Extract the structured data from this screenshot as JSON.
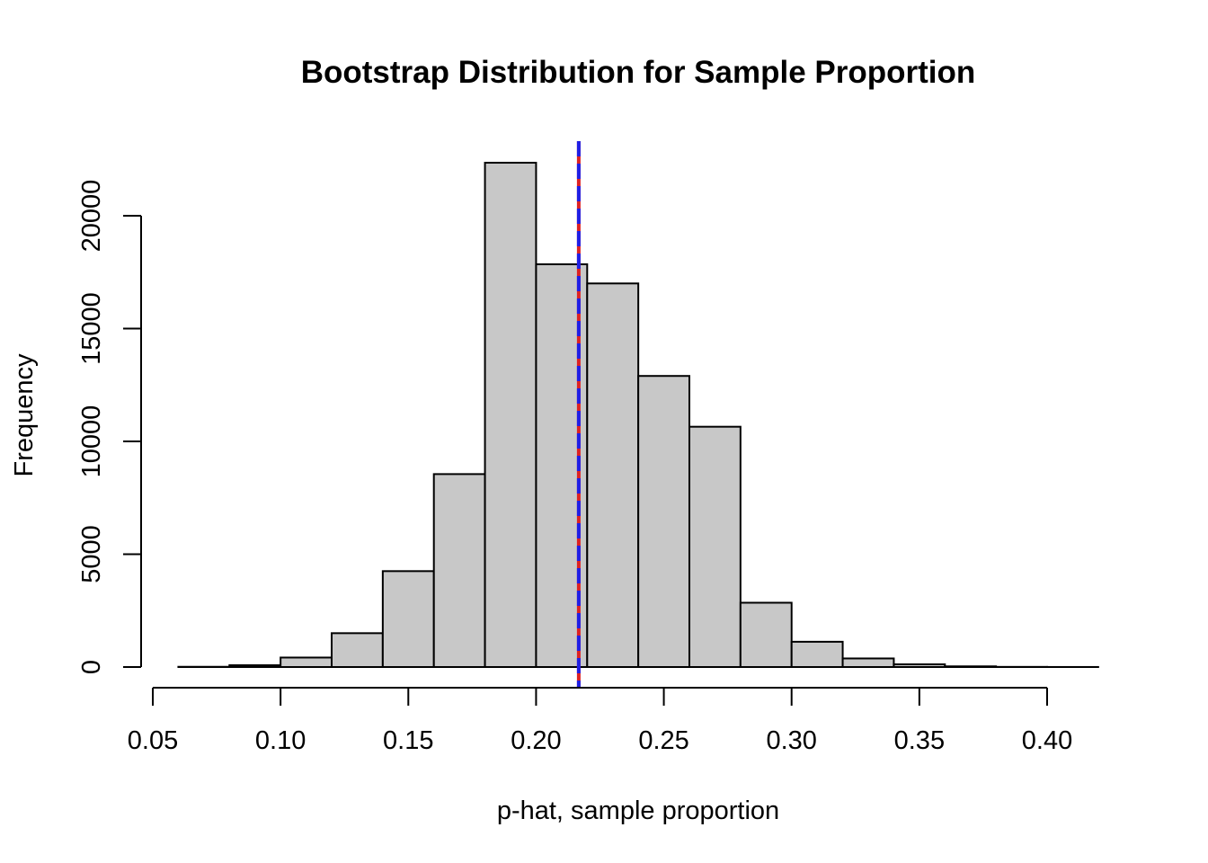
{
  "chart_data": {
    "type": "bar",
    "title": "Bootstrap Distribution for Sample Proportion",
    "xlabel": "p-hat, sample proportion",
    "ylabel": "Frequency",
    "bins": [
      {
        "start": 0.06,
        "end": 0.08,
        "count": 10
      },
      {
        "start": 0.08,
        "end": 0.1,
        "count": 80
      },
      {
        "start": 0.1,
        "end": 0.12,
        "count": 420
      },
      {
        "start": 0.12,
        "end": 0.14,
        "count": 1500
      },
      {
        "start": 0.14,
        "end": 0.16,
        "count": 4250
      },
      {
        "start": 0.16,
        "end": 0.18,
        "count": 8550
      },
      {
        "start": 0.18,
        "end": 0.2,
        "count": 22350
      },
      {
        "start": 0.2,
        "end": 0.22,
        "count": 17850
      },
      {
        "start": 0.22,
        "end": 0.24,
        "count": 17000
      },
      {
        "start": 0.24,
        "end": 0.26,
        "count": 12900
      },
      {
        "start": 0.26,
        "end": 0.28,
        "count": 10650
      },
      {
        "start": 0.28,
        "end": 0.3,
        "count": 2850
      },
      {
        "start": 0.3,
        "end": 0.32,
        "count": 1120
      },
      {
        "start": 0.32,
        "end": 0.34,
        "count": 380
      },
      {
        "start": 0.34,
        "end": 0.36,
        "count": 120
      },
      {
        "start": 0.36,
        "end": 0.38,
        "count": 30
      },
      {
        "start": 0.38,
        "end": 0.4,
        "count": 6
      },
      {
        "start": 0.4,
        "end": 0.42,
        "count": 2
      }
    ],
    "xlim": [
      0.05,
      0.42
    ],
    "ylim": [
      0,
      23000
    ],
    "xticks": [
      0.05,
      0.1,
      0.15,
      0.2,
      0.25,
      0.3,
      0.35,
      0.4
    ],
    "xtick_labels": [
      "0.05",
      "0.10",
      "0.15",
      "0.20",
      "0.25",
      "0.30",
      "0.35",
      "0.40"
    ],
    "yticks": [
      0,
      5000,
      10000,
      15000,
      20000
    ],
    "ytick_labels": [
      "0",
      "5000",
      "10000",
      "15000",
      "20000"
    ],
    "bar_color": "#c8c8c8",
    "bar_edge_color": "#000000",
    "reference_lines": [
      {
        "x": 0.2167,
        "color": "#dd2222",
        "style": "solid"
      },
      {
        "x": 0.2167,
        "color": "#1f1fe6",
        "style": "dashed"
      }
    ],
    "grid": false,
    "legend": "none"
  }
}
